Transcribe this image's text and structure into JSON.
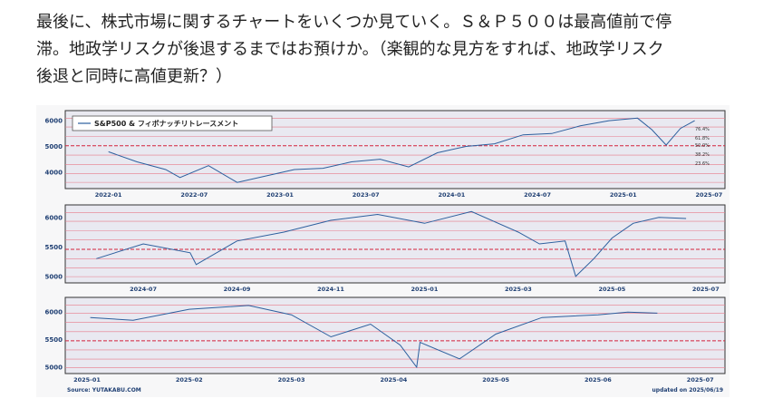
{
  "article": {
    "paragraph": [
      "最後に、株式市場に関するチャートをいくつか見ていく。Ｓ＆Ｐ５００は最高値前で停",
      "滞。地政学リスクが後退するまではお預けか。（楽観的な見方をすれば、地政学リスク",
      "後退と同時に高値更新？）"
    ]
  },
  "chart_data": [
    {
      "type": "line",
      "legend": "S&P500 & フィボナッチリトレースメント",
      "x_ticks": [
        "2022-01",
        "2022-07",
        "2023-01",
        "2023-07",
        "2024-01",
        "2024-07",
        "2025-01",
        "2025-07"
      ],
      "y_ticks": [
        4000,
        5000,
        6000
      ],
      "ylim": [
        3500,
        6250
      ],
      "fib_labels": [
        "76.4%",
        "61.8%",
        "50.0%",
        "38.2%",
        "23.6%"
      ],
      "x": [
        "2022-01",
        "2022-03",
        "2022-05",
        "2022-06",
        "2022-08",
        "2022-10",
        "2022-12",
        "2023-02",
        "2023-04",
        "2023-06",
        "2023-08",
        "2023-10",
        "2023-12",
        "2024-02",
        "2024-04",
        "2024-06",
        "2024-08",
        "2024-10",
        "2024-12",
        "2025-02",
        "2025-03",
        "2025-04",
        "2025-05",
        "2025-06"
      ],
      "y": [
        4790,
        4400,
        4100,
        3790,
        4250,
        3600,
        3850,
        4100,
        4150,
        4400,
        4500,
        4200,
        4750,
        5000,
        5100,
        5450,
        5500,
        5800,
        6000,
        6100,
        5650,
        5050,
        5700,
        6000
      ]
    },
    {
      "type": "line",
      "x_ticks": [
        "2024-07",
        "2024-09",
        "2024-11",
        "2025-01",
        "2025-03",
        "2025-05",
        "2025-07"
      ],
      "y_ticks": [
        5000,
        5500,
        6000
      ],
      "ylim": [
        4950,
        6150
      ],
      "x": [
        "2024-06",
        "2024-07",
        "2024-08",
        "2024-08-05",
        "2024-09",
        "2024-10",
        "2024-11",
        "2024-12",
        "2025-01",
        "2025-02",
        "2025-03",
        "2025-03-15",
        "2025-04-01",
        "2025-04-08",
        "2025-04-20",
        "2025-05",
        "2025-05-15",
        "2025-06",
        "2025-06-19"
      ],
      "y": [
        5300,
        5550,
        5400,
        5200,
        5600,
        5750,
        5950,
        6050,
        5900,
        6100,
        5750,
        5550,
        5600,
        5000,
        5300,
        5650,
        5900,
        6000,
        5980
      ]
    },
    {
      "type": "line",
      "x_ticks": [
        "2025-01",
        "2025-02",
        "2025-03",
        "2025-04",
        "2025-05",
        "2025-06",
        "2025-07"
      ],
      "y_ticks": [
        5000,
        5500,
        6000
      ],
      "ylim": [
        4950,
        6200
      ],
      "x": [
        "2025-01-02",
        "2025-01-15",
        "2025-02-01",
        "2025-02-19",
        "2025-03-01",
        "2025-03-13",
        "2025-03-25",
        "2025-04-03",
        "2025-04-08",
        "2025-04-09",
        "2025-04-21",
        "2025-05-01",
        "2025-05-15",
        "2025-06-01",
        "2025-06-10",
        "2025-06-19"
      ],
      "y": [
        5900,
        5850,
        6050,
        6120,
        5950,
        5550,
        5780,
        5400,
        5000,
        5450,
        5150,
        5600,
        5900,
        5950,
        6000,
        5980
      ]
    }
  ],
  "footer": {
    "source": "Source: YUTAKABU.COM",
    "updated": "updated on 2025/06/19"
  },
  "colors": {
    "line": "#2c5f9e",
    "fib": "#e77a8a",
    "fib_mid": "#d4233c",
    "plot_bg": "#e9e9f1",
    "axis_text": "#1f3f73"
  }
}
